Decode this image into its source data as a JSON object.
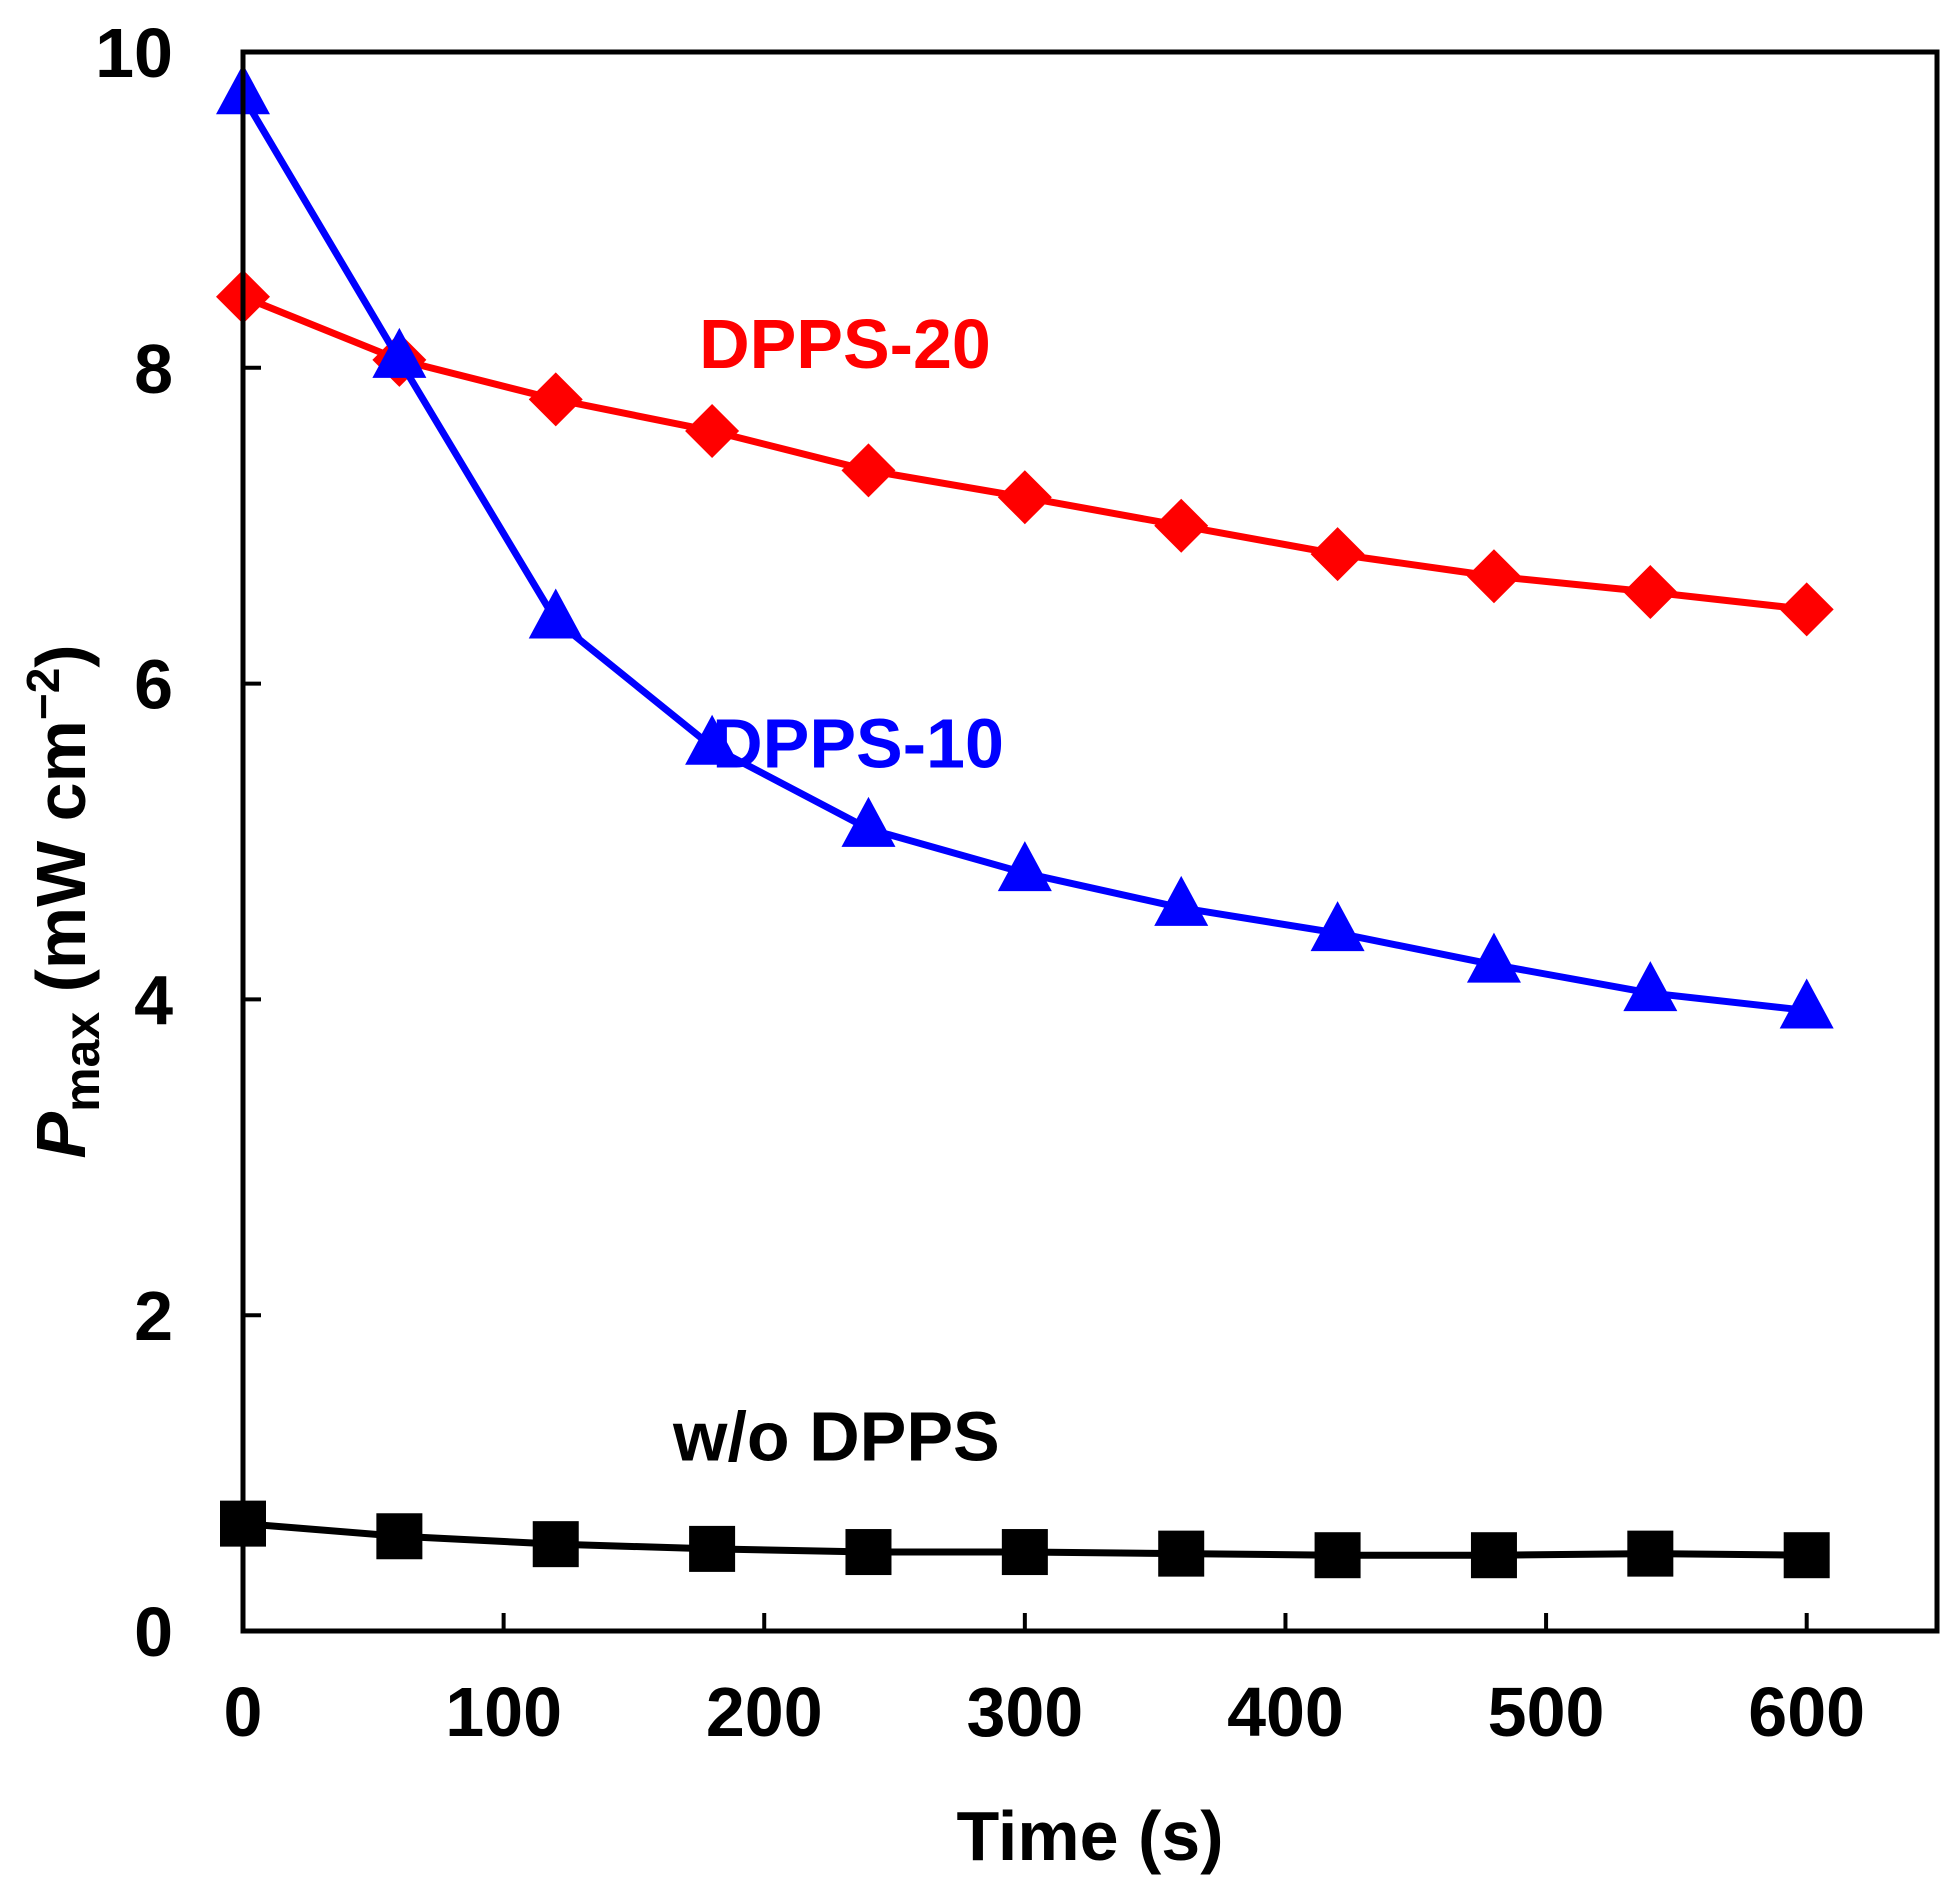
{
  "chart_data": {
    "type": "line",
    "title": "",
    "xlabel": "Time (s)",
    "ylabel": {
      "main": "P",
      "subscript": "max",
      "unit_open": " (mW cm",
      "unit_exp": "−2",
      "unit_close": ")"
    },
    "xlim": [
      0,
      650
    ],
    "ylim": [
      0,
      10
    ],
    "xticks": [
      0,
      100,
      200,
      300,
      400,
      500,
      600
    ],
    "yticks": [
      0,
      2,
      4,
      6,
      8,
      10
    ],
    "grid": false,
    "x": [
      0,
      60,
      120,
      180,
      240,
      300,
      360,
      420,
      480,
      540,
      600
    ],
    "series": [
      {
        "name": "DPPS-20",
        "color": "#ff0000",
        "marker": "diamond",
        "values": [
          8.45,
          8.05,
          7.8,
          7.6,
          7.35,
          7.18,
          7.0,
          6.82,
          6.68,
          6.58,
          6.47
        ]
      },
      {
        "name": "DPPS-10",
        "color": "#0000ff",
        "marker": "triangle",
        "values": [
          9.72,
          8.05,
          6.4,
          5.6,
          5.08,
          4.8,
          4.58,
          4.42,
          4.22,
          4.04,
          3.93
        ]
      },
      {
        "name": "w/o DPPS",
        "color": "#000000",
        "marker": "square",
        "values": [
          0.68,
          0.6,
          0.55,
          0.52,
          0.5,
          0.5,
          0.49,
          0.48,
          0.48,
          0.49,
          0.48
        ]
      }
    ]
  }
}
